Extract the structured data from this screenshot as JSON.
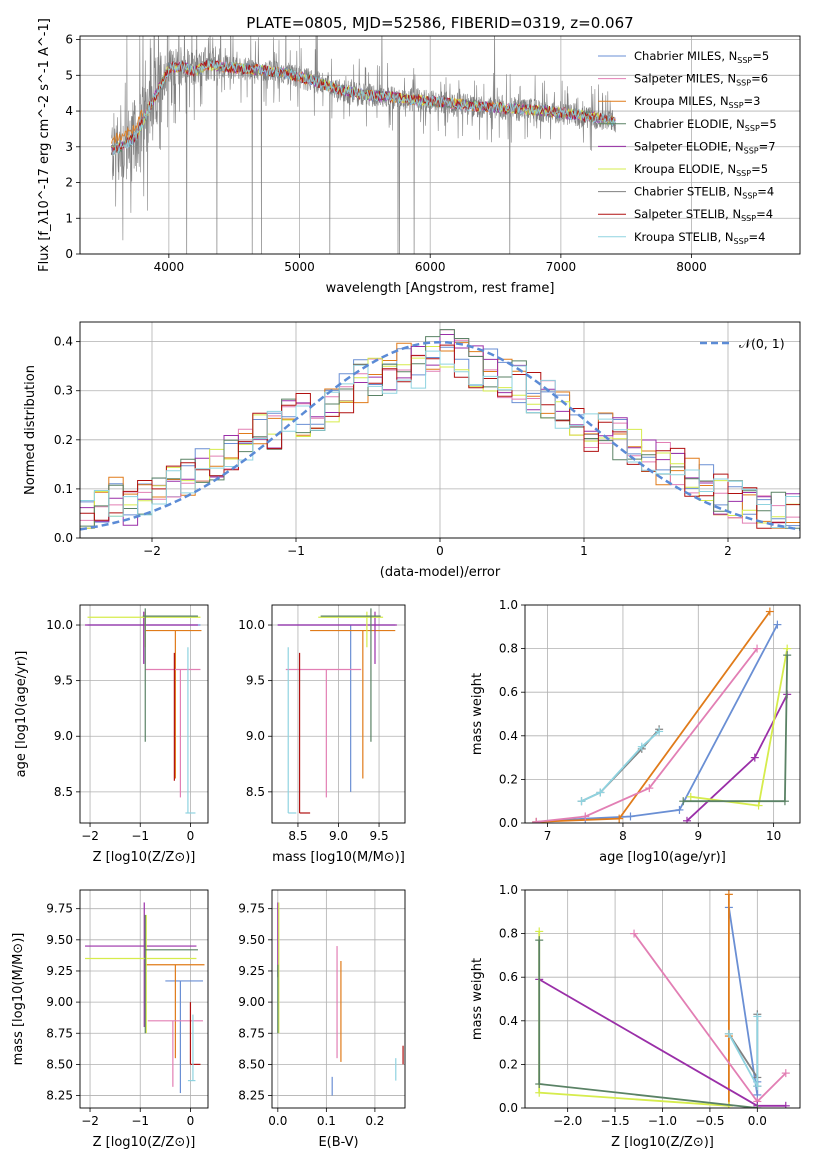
{
  "title": "PLATE=0805, MJD=52586, FIBERID=0319, z=0.067",
  "colors": {
    "blue": "#6a8fd4",
    "orange": "#e07b1a",
    "pink": "#e27fb4",
    "purple": "#9a2fa8",
    "lime": "#d6ec4c",
    "dkgreen": "#5a8265",
    "red": "#b01010",
    "cyan": "#8fd3e0",
    "gray": "#808080"
  },
  "chart_data": [
    {
      "type": "line",
      "xlabel": "wavelength [Angstrom, rest frame]",
      "ylabel": "Flux [f_λ10^-17 erg cm^-2 s^-1 A^-1]",
      "xlim": [
        3320,
        8830
      ],
      "ylim": [
        0,
        6.1
      ],
      "xticks": [
        4000,
        5000,
        6000,
        7000,
        8000
      ],
      "yticks": [
        0,
        1,
        2,
        3,
        4,
        5,
        6
      ],
      "grid": true,
      "legend_position": "right",
      "legend": [
        "Chabrier MILES, N_SSP=5",
        "Salpeter MILES, N_SSP=6",
        "Kroupa MILES, N_SSP=3",
        "Chabrier ELODIE, N_SSP=5",
        "Salpeter ELODIE, N_SSP=7",
        "Kroupa ELODIE, N_SSP=5",
        "Chabrier STELIB, N_SSP=4",
        "Salpeter STELIB, N_SSP=4",
        "Kroupa STELIB, N_SSP=4"
      ],
      "model_continuum": {
        "x": [
          3560,
          3650,
          3750,
          3850,
          3950,
          4000,
          4100,
          4200,
          4300,
          4400,
          4500,
          4700,
          4900,
          5100,
          5300,
          5500,
          5700,
          5900,
          6100,
          6300,
          6500,
          6700,
          6900,
          7100,
          7300,
          7420
        ],
        "y": [
          2.9,
          3.0,
          3.3,
          4.1,
          4.8,
          5.2,
          5.25,
          5.1,
          5.3,
          5.25,
          5.2,
          5.15,
          5.05,
          4.85,
          4.6,
          4.45,
          4.4,
          4.3,
          4.25,
          4.15,
          4.1,
          4.05,
          4.0,
          3.9,
          3.8,
          3.7
        ]
      },
      "data_wavelength_range": [
        3560,
        7420
      ]
    },
    {
      "type": "histogram",
      "xlabel": "(data-model)/error",
      "ylabel": "Normed distribution",
      "xlim": [
        -2.5,
        2.5
      ],
      "ylim": [
        0,
        0.44
      ],
      "xticks": [
        -2,
        -1,
        0,
        1,
        2
      ],
      "yticks": [
        0.0,
        0.1,
        0.2,
        0.3,
        0.4
      ],
      "grid": true,
      "legend": [
        "𝒩(0, 1)"
      ],
      "legend_position": "top-right",
      "bin_edges_range": [
        -2.5,
        2.5
      ],
      "bin_width": 0.1,
      "envelope_center": [
        0.04,
        0.06,
        0.08,
        0.06,
        0.09,
        0.11,
        0.12,
        0.13,
        0.14,
        0.16,
        0.18,
        0.2,
        0.21,
        0.22,
        0.25,
        0.25,
        0.26,
        0.28,
        0.3,
        0.32,
        0.33,
        0.34,
        0.36,
        0.35,
        0.37,
        0.38,
        0.37,
        0.35,
        0.34,
        0.33,
        0.32,
        0.3,
        0.28,
        0.26,
        0.25,
        0.22,
        0.21,
        0.2,
        0.19,
        0.17,
        0.15,
        0.14,
        0.12,
        0.11,
        0.09,
        0.08,
        0.07,
        0.06,
        0.05,
        0.05
      ]
    },
    {
      "type": "scatter",
      "xlabel": "Z [log10(Z/Z⊙)]",
      "ylabel": "age  [log10(age/yr)]",
      "xlim": [
        -2.2,
        0.35
      ],
      "ylim": [
        8.22,
        10.18
      ],
      "xticks": [
        -2,
        -1,
        0
      ],
      "yticks": [
        8.5,
        9.0,
        9.5,
        10.0
      ],
      "points": [
        {
          "s": "blue",
          "x": -0.95,
          "y": 10.0,
          "xe": [
            -2.05,
            0.2
          ],
          "ye": [
            10.0,
            10.0
          ]
        },
        {
          "s": "orange",
          "x": -0.3,
          "y": 9.95,
          "xe": [
            -0.9,
            0.22
          ],
          "ye": [
            8.62,
            9.95
          ]
        },
        {
          "s": "pink",
          "x": -0.2,
          "y": 9.6,
          "xe": [
            -0.9,
            0.2
          ],
          "ye": [
            8.45,
            9.6
          ]
        },
        {
          "s": "purple",
          "x": -0.93,
          "y": 10.0,
          "xe": [
            -2.1,
            0.15
          ],
          "ye": [
            9.65,
            10.12
          ]
        },
        {
          "s": "lime",
          "x": -0.9,
          "y": 10.07,
          "xe": [
            -2.05,
            0.2
          ],
          "ye": [
            9.8,
            10.12
          ]
        },
        {
          "s": "dkgreen",
          "x": -0.9,
          "y": 10.08,
          "xe": [
            -0.95,
            0.15
          ],
          "ye": [
            8.95,
            10.15
          ]
        },
        {
          "s": "red",
          "x": -0.32,
          "y": 9.4,
          "xe": [
            -0.32,
            -0.32
          ],
          "ye": [
            8.6,
            9.75
          ]
        },
        {
          "s": "cyan",
          "x": -0.05,
          "y": 8.31,
          "xe": [
            -0.1,
            0.1
          ],
          "ye": [
            8.31,
            9.8
          ]
        }
      ]
    },
    {
      "type": "scatter",
      "xlabel": "mass [log10(M/M⊙)]",
      "ylabel": "",
      "xlim": [
        8.18,
        9.82
      ],
      "ylim": [
        8.22,
        10.18
      ],
      "xticks": [
        8.5,
        9.0,
        9.5
      ],
      "yticks": [
        8.5,
        9.0,
        9.5,
        10.0
      ],
      "points": [
        {
          "s": "blue",
          "x": 9.15,
          "y": 10.0,
          "xe": [
            8.25,
            9.7
          ],
          "ye": [
            8.5,
            10.0
          ]
        },
        {
          "s": "orange",
          "x": 9.3,
          "y": 9.95,
          "xe": [
            8.65,
            9.7
          ],
          "ye": [
            8.62,
            9.95
          ]
        },
        {
          "s": "pink",
          "x": 8.85,
          "y": 9.6,
          "xe": [
            8.35,
            9.28
          ],
          "ye": [
            8.45,
            9.6
          ]
        },
        {
          "s": "purple",
          "x": 9.45,
          "y": 10.0,
          "xe": [
            8.25,
            9.72
          ],
          "ye": [
            9.65,
            10.12
          ]
        },
        {
          "s": "lime",
          "x": 9.35,
          "y": 10.07,
          "xe": [
            8.75,
            9.55
          ],
          "ye": [
            9.8,
            10.12
          ]
        },
        {
          "s": "dkgreen",
          "x": 9.4,
          "y": 10.08,
          "xe": [
            8.78,
            9.52
          ],
          "ye": [
            8.95,
            10.15
          ]
        },
        {
          "s": "red",
          "x": 8.52,
          "y": 8.31,
          "xe": [
            8.52,
            8.65
          ],
          "ye": [
            8.31,
            9.75
          ]
        },
        {
          "s": "cyan",
          "x": 8.38,
          "y": 8.31,
          "xe": [
            8.38,
            8.48
          ],
          "ye": [
            8.31,
            9.8
          ]
        }
      ]
    },
    {
      "type": "line",
      "xlabel": "age  [log10(age/yr)]",
      "ylabel": "mass weight",
      "xlim": [
        6.7,
        10.35
      ],
      "ylim": [
        0,
        1.0
      ],
      "xticks": [
        7,
        8,
        9,
        10
      ],
      "yticks": [
        0.0,
        0.2,
        0.4,
        0.6,
        0.8,
        1.0
      ],
      "grid": true,
      "series": [
        {
          "s": "blue",
          "x": [
            6.85,
            7.5,
            8.1,
            8.75,
            10.05
          ],
          "y": [
            0.005,
            0.02,
            0.03,
            0.06,
            0.91
          ]
        },
        {
          "s": "orange",
          "x": [
            6.85,
            7.95,
            9.95
          ],
          "y": [
            0.005,
            0.02,
            0.97
          ]
        },
        {
          "s": "pink",
          "x": [
            6.85,
            7.5,
            8.35,
            9.78
          ],
          "y": [
            0.005,
            0.03,
            0.16,
            0.8
          ]
        },
        {
          "s": "purple",
          "x": [
            8.85,
            9.75,
            10.18
          ],
          "y": [
            0.01,
            0.3,
            0.59
          ]
        },
        {
          "s": "lime",
          "x": [
            8.9,
            9.8,
            10.18
          ],
          "y": [
            0.12,
            0.08,
            0.8
          ]
        },
        {
          "s": "dkgreen",
          "x": [
            8.8,
            10.15,
            10.18
          ],
          "y": [
            0.1,
            0.1,
            0.77
          ]
        },
        {
          "s": "gray",
          "x": [
            7.45,
            7.7,
            8.25,
            8.48
          ],
          "y": [
            0.1,
            0.14,
            0.34,
            0.43
          ]
        },
        {
          "s": "cyan",
          "x": [
            7.45,
            7.7,
            8.25,
            8.48
          ],
          "y": [
            0.1,
            0.14,
            0.35,
            0.42
          ]
        }
      ]
    },
    {
      "type": "scatter",
      "xlabel": "Z [log10(Z/Z⊙)]",
      "ylabel": "mass [log10(M/M⊙)]",
      "xlim": [
        -2.2,
        0.35
      ],
      "ylim": [
        8.15,
        9.9
      ],
      "xticks": [
        -2,
        -1,
        0
      ],
      "yticks": [
        8.25,
        8.5,
        8.75,
        9.0,
        9.25,
        9.5,
        9.75
      ],
      "points": [
        {
          "s": "blue",
          "x": -0.2,
          "y": 9.17,
          "xe": [
            -0.5,
            0.25
          ],
          "ye": [
            8.27,
            9.17
          ]
        },
        {
          "s": "orange",
          "x": -0.3,
          "y": 9.3,
          "xe": [
            -0.9,
            0.28
          ],
          "ye": [
            8.55,
            9.3
          ]
        },
        {
          "s": "pink",
          "x": -0.35,
          "y": 8.85,
          "xe": [
            -0.85,
            0.25
          ],
          "ye": [
            8.32,
            8.85
          ]
        },
        {
          "s": "purple",
          "x": -0.92,
          "y": 9.45,
          "xe": [
            -2.1,
            0.12
          ],
          "ye": [
            8.8,
            9.8
          ]
        },
        {
          "s": "lime",
          "x": -0.88,
          "y": 9.35,
          "xe": [
            -2.1,
            0.12
          ],
          "ye": [
            8.75,
            9.7
          ]
        },
        {
          "s": "dkgreen",
          "x": -0.9,
          "y": 9.42,
          "xe": [
            -0.9,
            0.15
          ],
          "ye": [
            8.75,
            9.7
          ]
        },
        {
          "s": "red",
          "x": 0.0,
          "y": 8.5,
          "xe": [
            0.0,
            0.2
          ],
          "ye": [
            8.5,
            9.0
          ]
        },
        {
          "s": "cyan",
          "x": 0.05,
          "y": 8.37,
          "xe": [
            -0.05,
            0.1
          ],
          "ye": [
            8.37,
            8.9
          ]
        }
      ]
    },
    {
      "type": "scatter",
      "xlabel": "E(B-V)",
      "ylabel": "",
      "xlim": [
        -0.012,
        0.262
      ],
      "ylim": [
        8.15,
        9.9
      ],
      "xticks": [
        0.0,
        0.1,
        0.2
      ],
      "yticks": [
        8.25,
        8.5,
        8.75,
        9.0,
        9.25,
        9.5,
        9.75
      ],
      "points": [
        {
          "s": "blue",
          "x": 0.112,
          "y": 8.25,
          "xe": [
            0.112,
            0.112
          ],
          "ye": [
            8.25,
            8.4
          ]
        },
        {
          "s": "orange",
          "x": 0.13,
          "y": 8.52,
          "xe": [
            0.13,
            0.13
          ],
          "ye": [
            8.52,
            9.33
          ]
        },
        {
          "s": "pink",
          "x": 0.122,
          "y": 8.55,
          "xe": [
            0.122,
            0.122
          ],
          "ye": [
            8.55,
            9.45
          ]
        },
        {
          "s": "purple",
          "x": 0.0,
          "y": 9.75,
          "xe": [
            0.0,
            0.0
          ],
          "ye": [
            9.2,
            9.8
          ]
        },
        {
          "s": "lime",
          "x": 0.002,
          "y": 9.3,
          "xe": [
            0.002,
            0.002
          ],
          "ye": [
            8.75,
            9.8
          ]
        },
        {
          "s": "dkgreen",
          "x": 0.0,
          "y": 9.0,
          "xe": [
            0.0,
            0.0
          ],
          "ye": [
            8.75,
            9.3
          ]
        },
        {
          "s": "red",
          "x": 0.258,
          "y": 8.5,
          "xe": [
            0.258,
            0.258
          ],
          "ye": [
            8.5,
            8.65
          ]
        },
        {
          "s": "cyan",
          "x": 0.243,
          "y": 8.37,
          "xe": [
            0.243,
            0.243
          ],
          "ye": [
            8.37,
            8.55
          ]
        }
      ]
    },
    {
      "type": "line",
      "xlabel": "Z [log10(Z/Z⊙)]",
      "ylabel": "mass weight",
      "xlim": [
        -2.45,
        0.45
      ],
      "ylim": [
        0,
        1.0
      ],
      "xticks": [
        -2.0,
        -1.5,
        -1.0,
        -0.5,
        0.0
      ],
      "yticks": [
        0.0,
        0.2,
        0.4,
        0.6,
        0.8,
        1.0
      ],
      "grid": true,
      "series": [
        {
          "s": "blue",
          "x": [
            -0.3,
            0.0,
            0.0
          ],
          "y": [
            0.92,
            0.06,
            0.12
          ]
        },
        {
          "s": "orange",
          "x": [
            -0.3,
            -0.3,
            -0.3
          ],
          "y": [
            0.98,
            0.33,
            0.01
          ]
        },
        {
          "s": "pink",
          "x": [
            -1.3,
            0.0,
            0.3
          ],
          "y": [
            0.8,
            0.03,
            0.16
          ]
        },
        {
          "s": "purple",
          "x": [
            -2.3,
            0.0,
            0.3
          ],
          "y": [
            0.59,
            0.01,
            0.01
          ]
        },
        {
          "s": "lime",
          "x": [
            -2.3,
            -2.3,
            -0.3
          ],
          "y": [
            0.81,
            0.07,
            0.01
          ]
        },
        {
          "s": "dkgreen",
          "x": [
            -2.3,
            -2.3,
            0.0
          ],
          "y": [
            0.77,
            0.11,
            0.0
          ]
        },
        {
          "s": "gray",
          "x": [
            -0.3,
            0.0,
            0.0,
            0.0
          ],
          "y": [
            0.34,
            0.14,
            0.1,
            0.43
          ]
        },
        {
          "s": "cyan",
          "x": [
            -0.3,
            0.0,
            0.0
          ],
          "y": [
            0.34,
            0.1,
            0.42
          ]
        }
      ]
    }
  ]
}
